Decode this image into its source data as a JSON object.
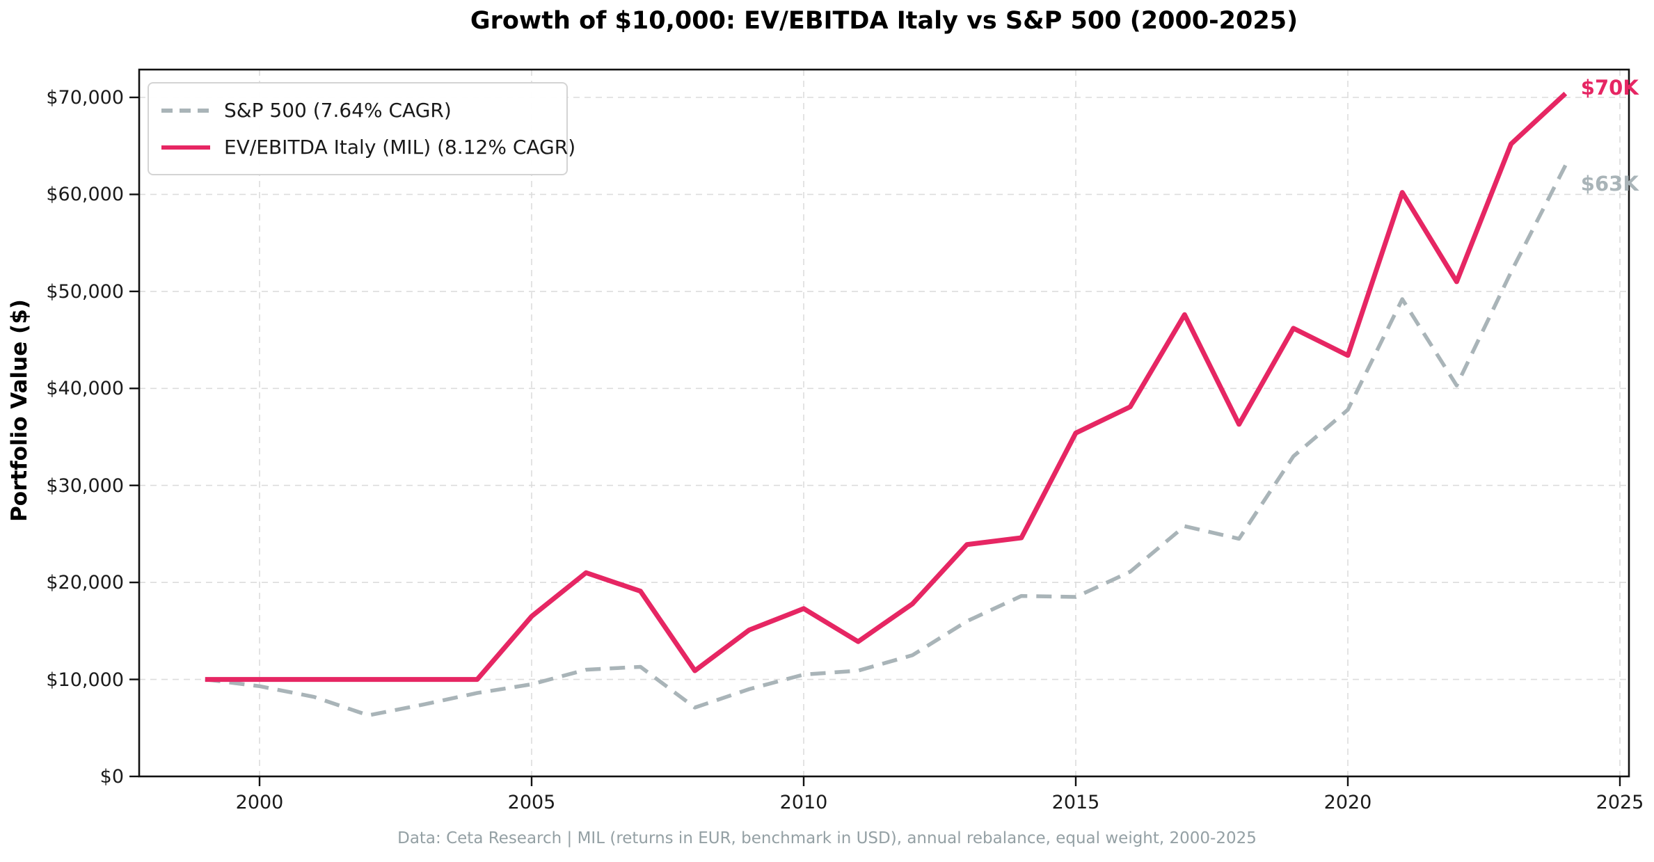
{
  "chart_data": {
    "type": "line",
    "title": "Growth of $10,000: EV/EBITDA Italy vs S&P 500 (2000-2025)",
    "ylabel": "Portfolio Value ($)",
    "xlabel": "",
    "footer": "Data: Ceta Research | MIL (returns in EUR, benchmark in USD), annual rebalance, equal weight, 2000-2025",
    "grid": "on, dashed light gray",
    "legend_position": "upper left",
    "xlim": [
      1997.8,
      2025.2
    ],
    "ylim": [
      0,
      72900
    ],
    "x": [
      1999,
      2000,
      2001,
      2002,
      2003,
      2004,
      2005,
      2006,
      2007,
      2008,
      2009,
      2010,
      2011,
      2012,
      2013,
      2014,
      2015,
      2016,
      2017,
      2018,
      2019,
      2020,
      2021,
      2022,
      2023,
      2024
    ],
    "series": [
      {
        "name": "S&P 500 (7.64% CAGR)",
        "color": "#a9b4b8",
        "style": "dashed",
        "end_label": "$63K",
        "values": [
          10000,
          9300,
          8200,
          6300,
          7400,
          8600,
          9500,
          11000,
          11300,
          7100,
          9000,
          10500,
          10900,
          12500,
          16000,
          18600,
          18500,
          21100,
          25800,
          24500,
          33000,
          37800,
          49200,
          40300,
          52000,
          63000
        ]
      },
      {
        "name": "EV/EBITDA Italy (MIL) (8.12% CAGR)",
        "color": "#e62663",
        "style": "solid",
        "end_label": "$70K",
        "values": [
          10000,
          10000,
          10000,
          10000,
          10000,
          10000,
          16500,
          21000,
          19100,
          10900,
          15100,
          17300,
          13900,
          17800,
          23900,
          24600,
          35400,
          38100,
          47600,
          36300,
          46200,
          43400,
          60200,
          51000,
          65200,
          70400
        ]
      }
    ],
    "y_tick_values": [
      0,
      10000,
      20000,
      30000,
      40000,
      50000,
      60000,
      70000
    ],
    "y_tick_labels": [
      "$0",
      "$10,000",
      "$20,000",
      "$30,000",
      "$40,000",
      "$50,000",
      "$60,000",
      "$70,000"
    ],
    "x_tick_values": [
      2000,
      2005,
      2010,
      2015,
      2020,
      2025
    ],
    "x_tick_labels": [
      "2000",
      "2005",
      "2010",
      "2015",
      "2020",
      "2025"
    ]
  }
}
